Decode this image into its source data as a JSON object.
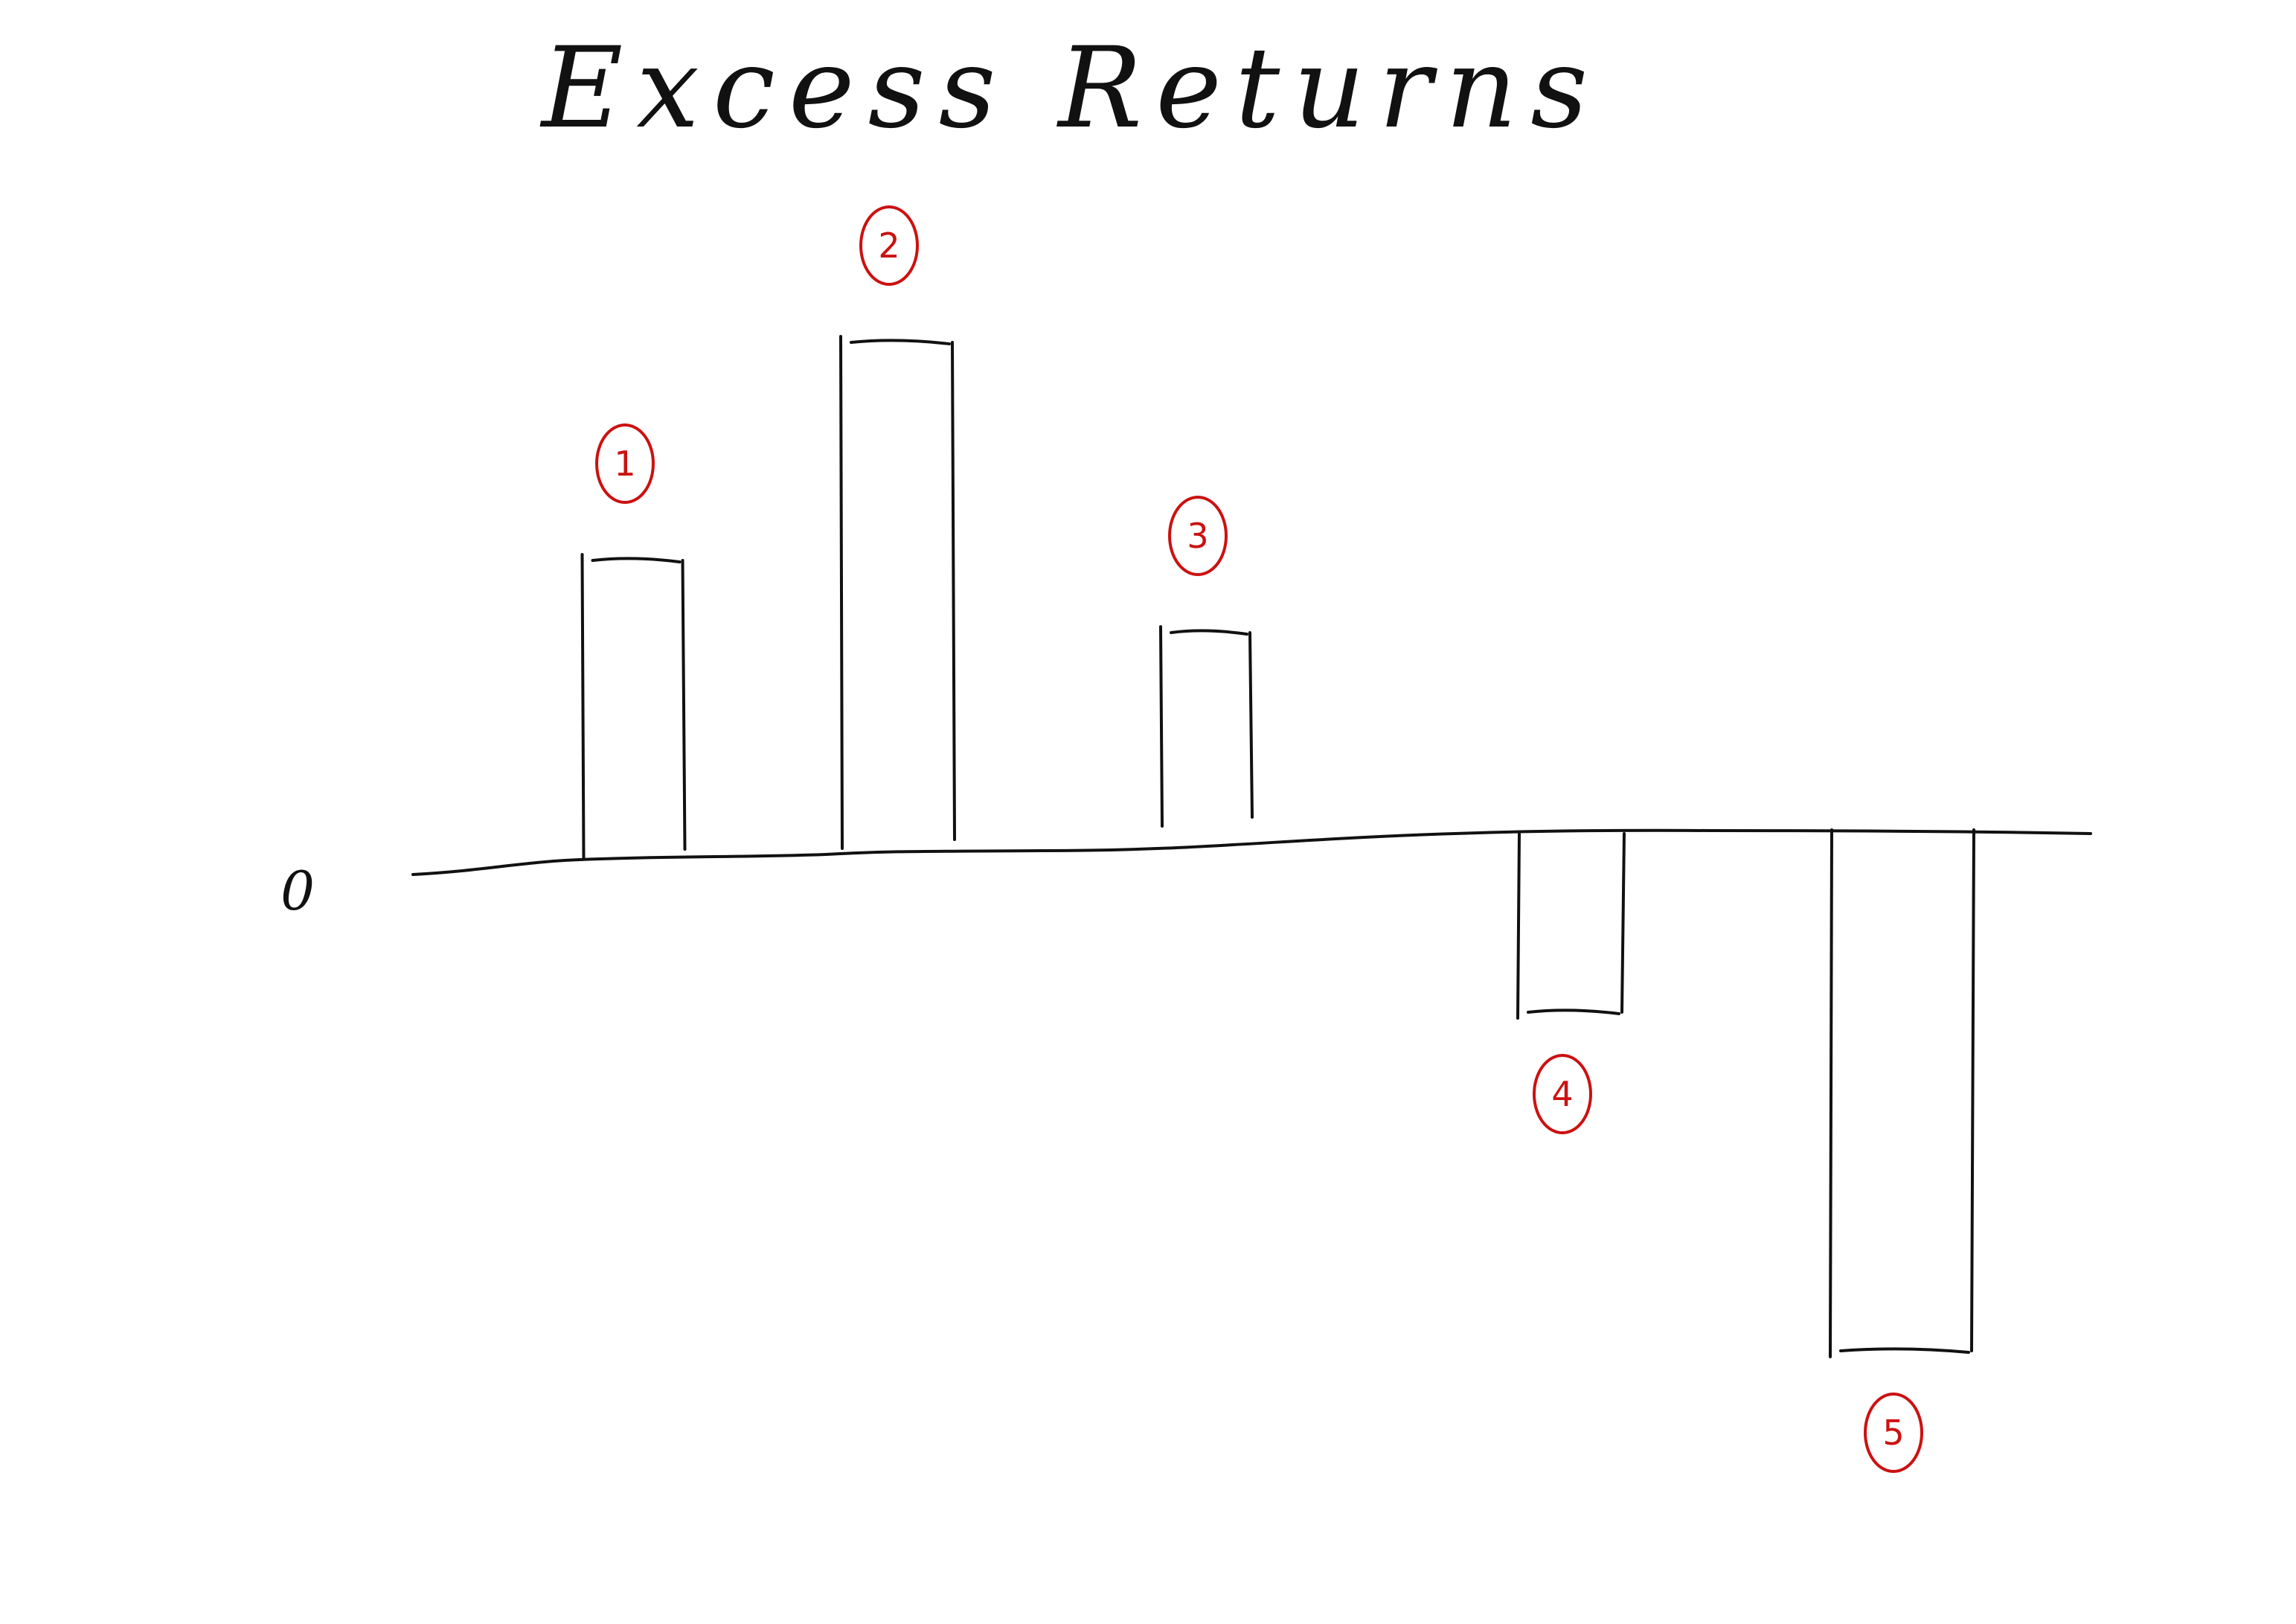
{
  "chart_data": {
    "type": "bar",
    "title": "Excess Returns",
    "zero_label": "0",
    "xlabel": "",
    "ylabel": "",
    "categories": [
      "1",
      "2",
      "3",
      "4",
      "5"
    ],
    "values": [
      2.0,
      3.4,
      1.3,
      -1.2,
      -3.5
    ],
    "ylim": [
      -4.5,
      4.5
    ],
    "grid": false,
    "legend": "none",
    "colors": {
      "ink": "#111111",
      "labels": "#cc1111"
    }
  }
}
